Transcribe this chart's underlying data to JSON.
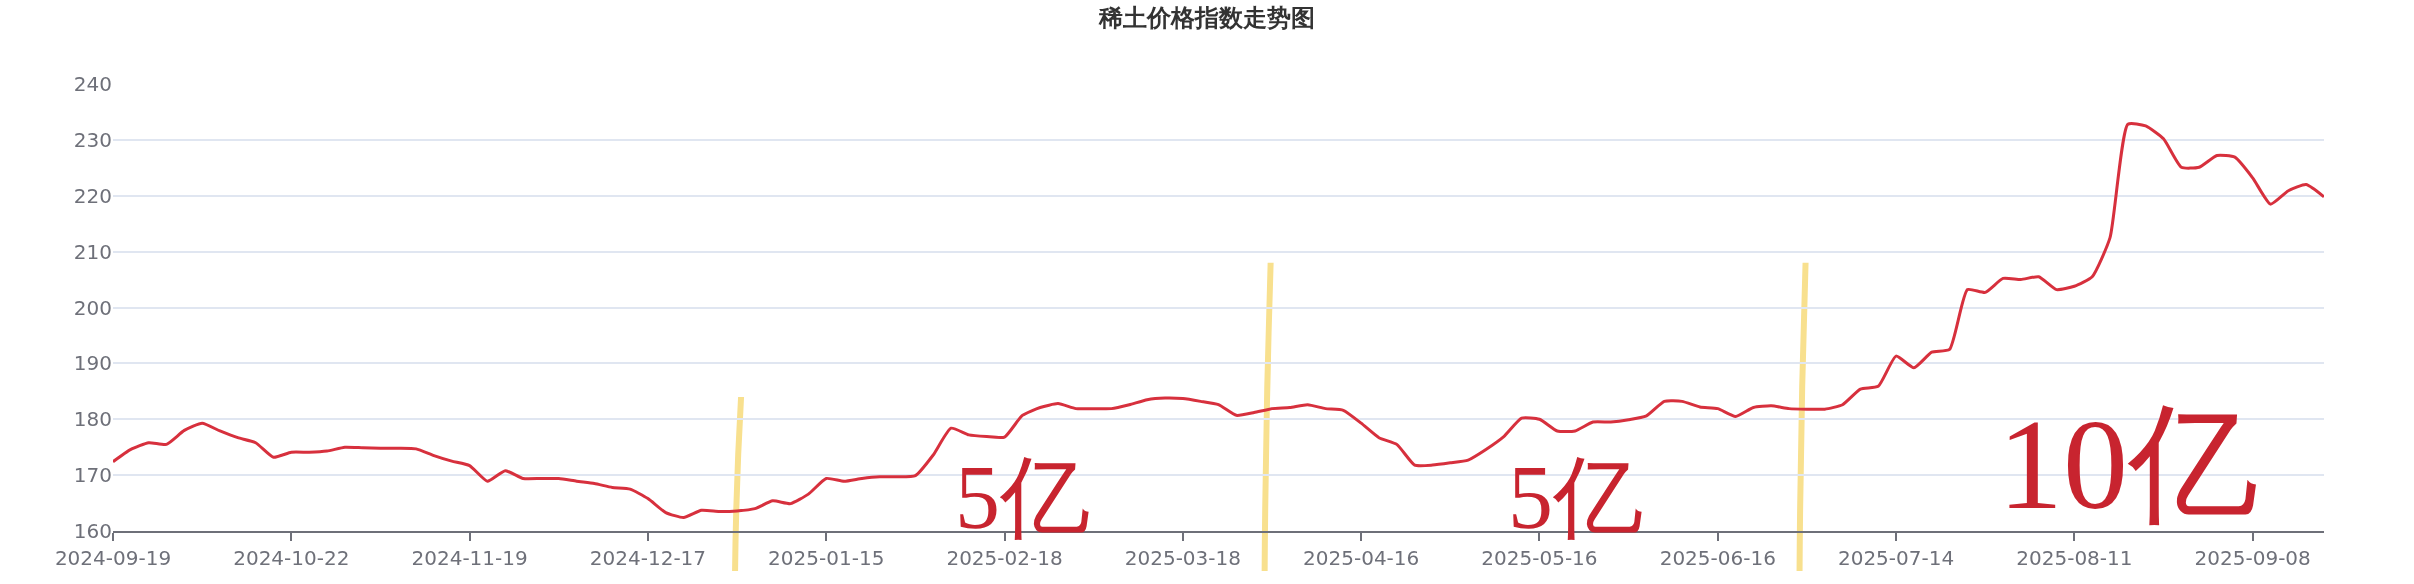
{
  "chart_data": {
    "type": "line",
    "title": "稀土价格指数走势图",
    "categories": [
      "2024-09-19",
      null,
      null,
      null,
      null,
      null,
      null,
      null,
      null,
      null,
      "2024-10-22",
      null,
      null,
      null,
      null,
      null,
      null,
      null,
      null,
      null,
      "2024-11-19",
      null,
      null,
      null,
      null,
      null,
      null,
      null,
      null,
      null,
      "2024-12-17",
      null,
      null,
      null,
      null,
      null,
      null,
      null,
      null,
      null,
      "2025-01-15",
      null,
      null,
      null,
      null,
      null,
      null,
      null,
      null,
      null,
      "2025-02-18",
      null,
      null,
      null,
      null,
      null,
      null,
      null,
      null,
      null,
      "2025-03-18",
      null,
      null,
      null,
      null,
      null,
      null,
      null,
      null,
      null,
      "2025-04-16",
      null,
      null,
      null,
      null,
      null,
      null,
      null,
      null,
      null,
      "2025-05-16",
      null,
      null,
      null,
      null,
      null,
      null,
      null,
      null,
      null,
      "2025-06-16",
      null,
      null,
      null,
      null,
      null,
      null,
      null,
      null,
      null,
      "2025-07-14",
      null,
      null,
      null,
      null,
      null,
      null,
      null,
      null,
      null,
      "2025-08-11",
      null,
      null,
      null,
      null,
      null,
      null,
      null,
      null,
      null,
      "2025-09-08",
      null,
      null,
      null,
      null
    ],
    "series": [
      {
        "color": "#d7303d",
        "values": [
          172.4,
          174.6,
          175.8,
          175.5,
          178,
          179.3,
          177.9,
          176.7,
          175.8,
          173.2,
          174.1,
          174.1,
          174.3,
          175,
          174.9,
          174.8,
          174.8,
          174.7,
          173.5,
          172.5,
          171.7,
          168.9,
          170.8,
          169.4,
          169.4,
          169.4,
          168.9,
          168.5,
          167.8,
          167.5,
          165.8,
          163.3,
          162.4,
          163.7,
          163.5,
          163.6,
          164,
          165.4,
          164.9,
          166.6,
          169.4,
          168.9,
          169.4,
          169.7,
          169.7,
          169.9,
          173.6,
          178.4,
          177.2,
          176.9,
          176.8,
          180.7,
          182.1,
          182.8,
          181.9,
          181.9,
          181.9,
          182.6,
          183.5,
          183.8,
          183.7,
          183.2,
          182.6,
          180.7,
          181.2,
          181.9,
          182.1,
          182.6,
          181.9,
          181.6,
          179.3,
          176.7,
          175.5,
          171.8,
          171.8,
          172.2,
          172.7,
          174.6,
          176.9,
          180.2,
          180,
          177.9,
          177.9,
          179.5,
          179.5,
          179.9,
          180.6,
          183.2,
          183.2,
          182.2,
          181.9,
          180.5,
          182.1,
          182.4,
          181.9,
          181.8,
          181.8,
          182.6,
          185.4,
          185.9,
          191.3,
          189.2,
          192,
          192.5,
          203.2,
          202.7,
          205.2,
          205,
          205.5,
          203.2,
          203.8,
          205.5,
          212.5,
          232.8,
          232.5,
          230.2,
          225.1,
          225.1,
          227.2,
          226.9,
          223.2,
          218.5,
          220.9,
          222,
          219.8
        ]
      }
    ],
    "ylim": [
      160,
      240
    ],
    "yticks": [
      160,
      170,
      180,
      190,
      200,
      210,
      220,
      230,
      240
    ],
    "grid": "y",
    "annotations": [
      "5亿",
      "5亿",
      "10亿"
    ]
  }
}
